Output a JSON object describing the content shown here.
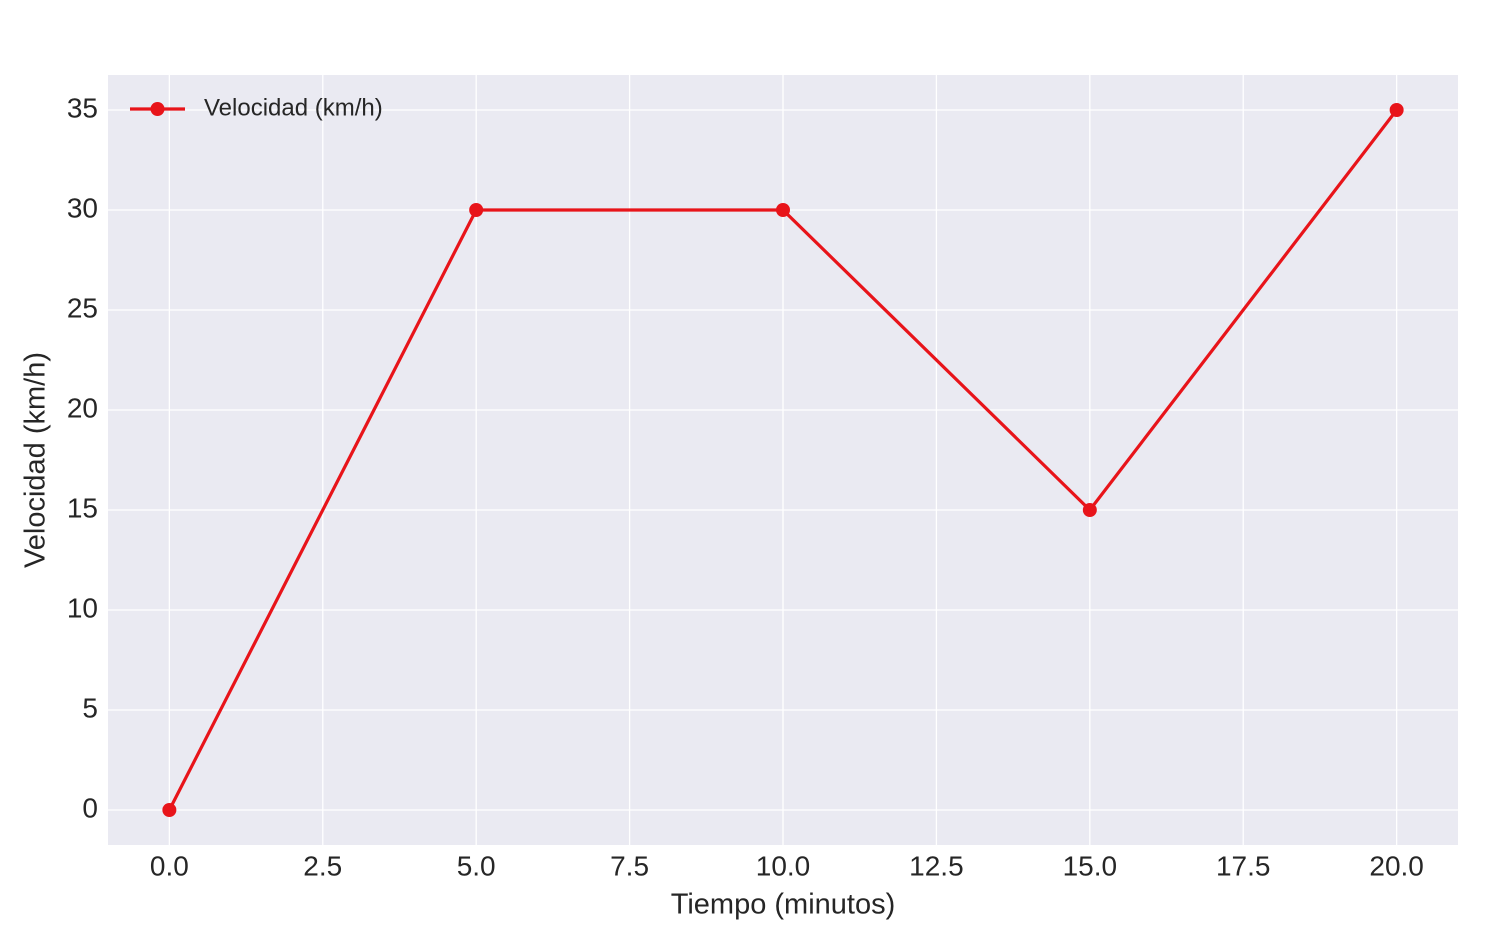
{
  "chart_data": {
    "type": "line",
    "x_label": "Tiempo (minutos)",
    "y_label": "Velocidad (km/h)",
    "x": [
      0,
      5,
      10,
      15,
      20
    ],
    "series": [
      {
        "name": "Velocidad (km/h)",
        "color": "#e8141a",
        "values": [
          0,
          30,
          30,
          15,
          35
        ]
      }
    ],
    "xlim": [
      -1,
      21
    ],
    "xticks": [
      {
        "value": 0,
        "label": "0.0"
      },
      2.5,
      {
        "value": 5,
        "label": "5.0"
      },
      7.5,
      {
        "value": 10,
        "label": "10.0"
      },
      12.5,
      {
        "value": 15,
        "label": "15.0"
      },
      17.5,
      {
        "value": 20,
        "label": "20.0"
      }
    ],
    "ylim": [
      -1.75,
      36.75
    ],
    "yticks": [
      0,
      5,
      10,
      15,
      20,
      25,
      30,
      35
    ],
    "grid": true,
    "legend": "upper-left"
  }
}
